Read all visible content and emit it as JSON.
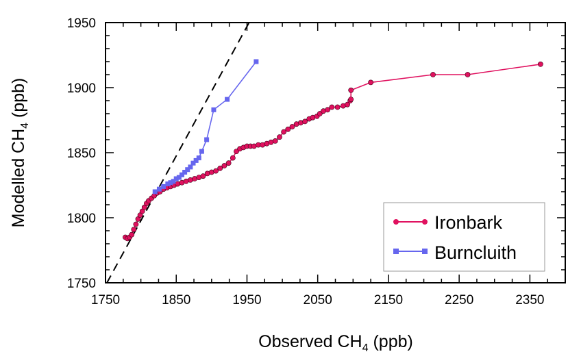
{
  "chart_data": {
    "type": "line",
    "title": "",
    "xlabel": "Observed CH",
    "xlabel_sub": "4",
    "xlabel_unit": " (ppb)",
    "ylabel": "Modelled CH",
    "ylabel_sub": "4",
    "ylabel_unit": " (ppb)",
    "xlim": [
      1750,
      2400
    ],
    "ylim": [
      1750,
      1950
    ],
    "xticks": [
      "1750",
      "1850",
      "1950",
      "2050",
      "2150",
      "2250",
      "2350"
    ],
    "yticks": [
      "1750",
      "1800",
      "1850",
      "1900",
      "1950"
    ],
    "grid": false,
    "legend_position": "bottom-right",
    "reference_line": {
      "style": "dashed",
      "color": "#000000",
      "points": [
        [
          1752,
          1750
        ],
        [
          1955,
          1952
        ]
      ]
    },
    "series": [
      {
        "name": "Ironbark",
        "color": "#e0115f",
        "marker": "circle",
        "points": [
          [
            1778,
            1785
          ],
          [
            1781,
            1784
          ],
          [
            1784,
            1785
          ],
          [
            1787,
            1787
          ],
          [
            1790,
            1791
          ],
          [
            1793,
            1795
          ],
          [
            1796,
            1799
          ],
          [
            1799,
            1802
          ],
          [
            1802,
            1805
          ],
          [
            1805,
            1808
          ],
          [
            1808,
            1811
          ],
          [
            1811,
            1813
          ],
          [
            1815,
            1815
          ],
          [
            1819,
            1817
          ],
          [
            1823,
            1819
          ],
          [
            1827,
            1820
          ],
          [
            1832,
            1822
          ],
          [
            1837,
            1823
          ],
          [
            1842,
            1824
          ],
          [
            1847,
            1825
          ],
          [
            1852,
            1826
          ],
          [
            1858,
            1827
          ],
          [
            1864,
            1828
          ],
          [
            1870,
            1829
          ],
          [
            1876,
            1830
          ],
          [
            1882,
            1831
          ],
          [
            1888,
            1832
          ],
          [
            1894,
            1834
          ],
          [
            1900,
            1835
          ],
          [
            1906,
            1836
          ],
          [
            1912,
            1838
          ],
          [
            1918,
            1840
          ],
          [
            1924,
            1842
          ],
          [
            1930,
            1846
          ],
          [
            1935,
            1851
          ],
          [
            1940,
            1853
          ],
          [
            1945,
            1854
          ],
          [
            1950,
            1855
          ],
          [
            1955,
            1855
          ],
          [
            1960,
            1855
          ],
          [
            1966,
            1856
          ],
          [
            1972,
            1856
          ],
          [
            1978,
            1857
          ],
          [
            1984,
            1858
          ],
          [
            1990,
            1859
          ],
          [
            1996,
            1862
          ],
          [
            2002,
            1866
          ],
          [
            2008,
            1868
          ],
          [
            2014,
            1870
          ],
          [
            2020,
            1872
          ],
          [
            2026,
            1873
          ],
          [
            2032,
            1874
          ],
          [
            2038,
            1876
          ],
          [
            2043,
            1877
          ],
          [
            2049,
            1878
          ],
          [
            2053,
            1880
          ],
          [
            2058,
            1882
          ],
          [
            2064,
            1883
          ],
          [
            2070,
            1885
          ],
          [
            2078,
            1885
          ],
          [
            2086,
            1886
          ],
          [
            2092,
            1887
          ],
          [
            2096,
            1890
          ],
          [
            2097,
            1891
          ],
          [
            2097,
            1898
          ],
          [
            2125,
            1904
          ],
          [
            2213,
            1910
          ],
          [
            2262,
            1910
          ],
          [
            2365,
            1918
          ]
        ]
      },
      {
        "name": "Burncluith",
        "color": "#6666ee",
        "marker": "square",
        "points": [
          [
            1820,
            1820
          ],
          [
            1826,
            1822
          ],
          [
            1832,
            1824
          ],
          [
            1838,
            1826
          ],
          [
            1842,
            1827
          ],
          [
            1846,
            1828
          ],
          [
            1850,
            1830
          ],
          [
            1854,
            1831
          ],
          [
            1858,
            1833
          ],
          [
            1862,
            1835
          ],
          [
            1866,
            1837
          ],
          [
            1870,
            1839
          ],
          [
            1874,
            1842
          ],
          [
            1878,
            1844
          ],
          [
            1882,
            1846
          ],
          [
            1886,
            1851
          ],
          [
            1893,
            1860
          ],
          [
            1903,
            1883
          ],
          [
            1922,
            1891
          ],
          [
            1963,
            1920
          ]
        ]
      }
    ]
  }
}
